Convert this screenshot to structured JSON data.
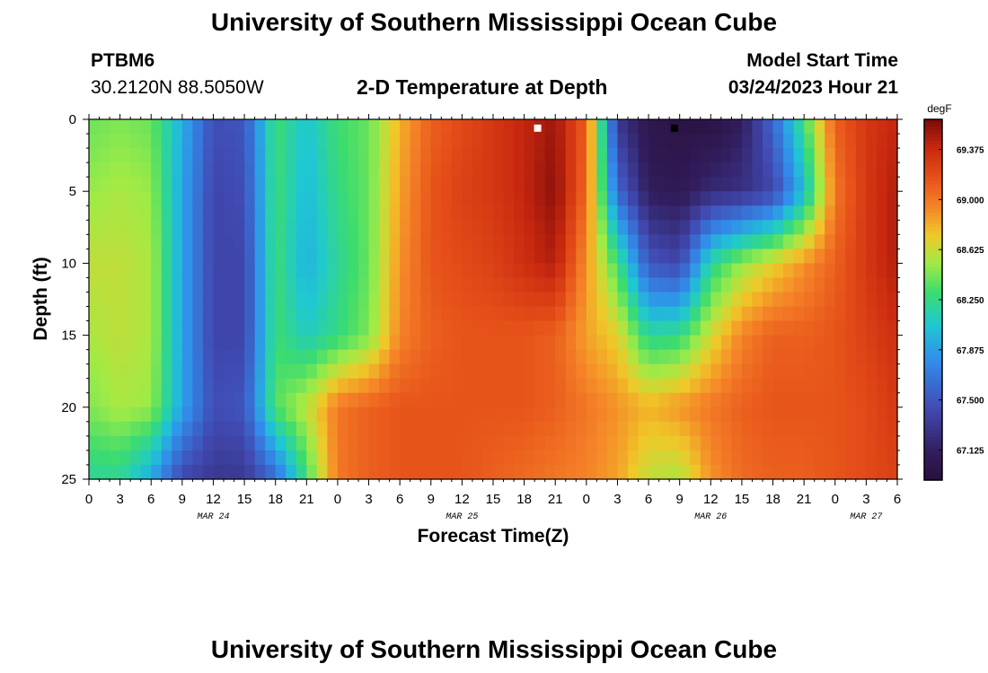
{
  "page": {
    "title_top": "University of Southern Mississippi Ocean Cube",
    "title_bottom": "University of Southern Mississippi Ocean Cube",
    "station_id": "PTBM6",
    "station_coords": "30.2120N  88.5050W",
    "plot_title": "2-D Temperature at Depth",
    "model_start_label": "Model Start Time",
    "model_start_value": "03/24/2023 Hour 21"
  },
  "chart_data": {
    "type": "heatmap",
    "title": "2-D Temperature at Depth",
    "xlabel": "Forecast Time(Z)",
    "ylabel": "Depth (ft)",
    "x_range_hours": [
      0,
      78
    ],
    "y_range_ft": [
      0,
      25
    ],
    "x_ticks": [
      {
        "h": 0,
        "label": "0"
      },
      {
        "h": 3,
        "label": "3"
      },
      {
        "h": 6,
        "label": "6"
      },
      {
        "h": 9,
        "label": "9"
      },
      {
        "h": 12,
        "label": "12"
      },
      {
        "h": 15,
        "label": "15"
      },
      {
        "h": 18,
        "label": "18"
      },
      {
        "h": 21,
        "label": "21"
      },
      {
        "h": 24,
        "label": "0"
      },
      {
        "h": 27,
        "label": "3"
      },
      {
        "h": 30,
        "label": "6"
      },
      {
        "h": 33,
        "label": "9"
      },
      {
        "h": 36,
        "label": "12"
      },
      {
        "h": 39,
        "label": "15"
      },
      {
        "h": 42,
        "label": "18"
      },
      {
        "h": 45,
        "label": "21"
      },
      {
        "h": 48,
        "label": "0"
      },
      {
        "h": 51,
        "label": "3"
      },
      {
        "h": 54,
        "label": "6"
      },
      {
        "h": 57,
        "label": "9"
      },
      {
        "h": 60,
        "label": "12"
      },
      {
        "h": 63,
        "label": "15"
      },
      {
        "h": 66,
        "label": "18"
      },
      {
        "h": 69,
        "label": "21"
      },
      {
        "h": 72,
        "label": "0"
      },
      {
        "h": 75,
        "label": "3"
      },
      {
        "h": 78,
        "label": "6"
      }
    ],
    "date_labels": [
      {
        "h": 12,
        "label": "MAR 24"
      },
      {
        "h": 36,
        "label": "MAR 25"
      },
      {
        "h": 60,
        "label": "MAR 26"
      },
      {
        "h": 75,
        "label": "MAR 27"
      }
    ],
    "y_ticks": [
      {
        "v": 0,
        "label": "0"
      },
      {
        "v": 5,
        "label": "5"
      },
      {
        "v": 10,
        "label": "10"
      },
      {
        "v": 15,
        "label": "15"
      },
      {
        "v": 20,
        "label": "20"
      },
      {
        "v": 25,
        "label": "25"
      }
    ],
    "colorbar": {
      "unit": "degF",
      "vmin": 66.9,
      "vmax": 69.6,
      "levels": [
        "69.375",
        "69.000",
        "68.625",
        "68.250",
        "67.875",
        "67.500",
        "67.125"
      ],
      "level_values": [
        69.375,
        69.0,
        68.625,
        68.25,
        67.875,
        67.5,
        67.125
      ]
    },
    "grid": {
      "time_hours": [
        0,
        3,
        6,
        9,
        12,
        15,
        18,
        21,
        24,
        27,
        30,
        33,
        36,
        39,
        42,
        45,
        48,
        51,
        54,
        57,
        60,
        63,
        66,
        69,
        72,
        75,
        78
      ],
      "depths_ft": [
        0,
        5,
        10,
        15,
        20,
        25
      ],
      "temperature_degF": [
        [
          68.4,
          68.45,
          68.4,
          67.95,
          67.45,
          67.5,
          68.3,
          68.05,
          68.3,
          68.4,
          68.8,
          69.1,
          69.2,
          69.3,
          69.4,
          69.5,
          69.1,
          67.3,
          67.0,
          66.95,
          66.95,
          67.1,
          67.6,
          68.3,
          69.1,
          69.3,
          69.4
        ],
        [
          68.5,
          68.55,
          68.5,
          67.9,
          67.4,
          67.45,
          68.3,
          68.0,
          68.25,
          68.4,
          68.85,
          69.15,
          69.25,
          69.3,
          69.4,
          69.55,
          69.05,
          67.6,
          67.1,
          67.05,
          67.2,
          67.25,
          67.4,
          68.0,
          69.0,
          69.3,
          69.45
        ],
        [
          68.6,
          68.6,
          68.55,
          67.9,
          67.4,
          67.4,
          68.3,
          67.95,
          68.2,
          68.4,
          68.9,
          69.15,
          69.2,
          69.25,
          69.35,
          69.45,
          68.9,
          68.3,
          67.5,
          67.4,
          68.2,
          68.5,
          68.7,
          68.9,
          69.1,
          69.3,
          69.45
        ],
        [
          68.55,
          68.6,
          68.55,
          67.9,
          67.4,
          67.4,
          68.3,
          68.1,
          68.25,
          68.45,
          68.95,
          69.1,
          69.15,
          69.15,
          69.15,
          69.1,
          68.85,
          68.7,
          68.2,
          68.25,
          68.65,
          68.95,
          69.1,
          69.1,
          69.15,
          69.25,
          69.35
        ],
        [
          68.45,
          68.55,
          68.5,
          67.9,
          67.45,
          67.5,
          68.35,
          68.6,
          69.0,
          69.1,
          69.15,
          69.15,
          69.15,
          69.15,
          69.15,
          69.1,
          69.0,
          68.9,
          68.8,
          68.9,
          69.0,
          69.1,
          69.15,
          69.15,
          69.15,
          69.2,
          69.3
        ],
        [
          68.2,
          68.2,
          67.9,
          67.4,
          67.3,
          67.3,
          67.6,
          68.3,
          69.0,
          69.1,
          69.15,
          69.15,
          69.15,
          69.1,
          69.05,
          69.0,
          68.95,
          68.85,
          68.6,
          68.55,
          68.9,
          69.05,
          69.1,
          69.1,
          69.15,
          69.2,
          69.25
        ]
      ]
    },
    "markers": [
      {
        "h": 43.3,
        "depth": 0.3,
        "color": "#ffffff"
      },
      {
        "h": 56.5,
        "depth": 0.3,
        "color": "#000000"
      }
    ]
  }
}
